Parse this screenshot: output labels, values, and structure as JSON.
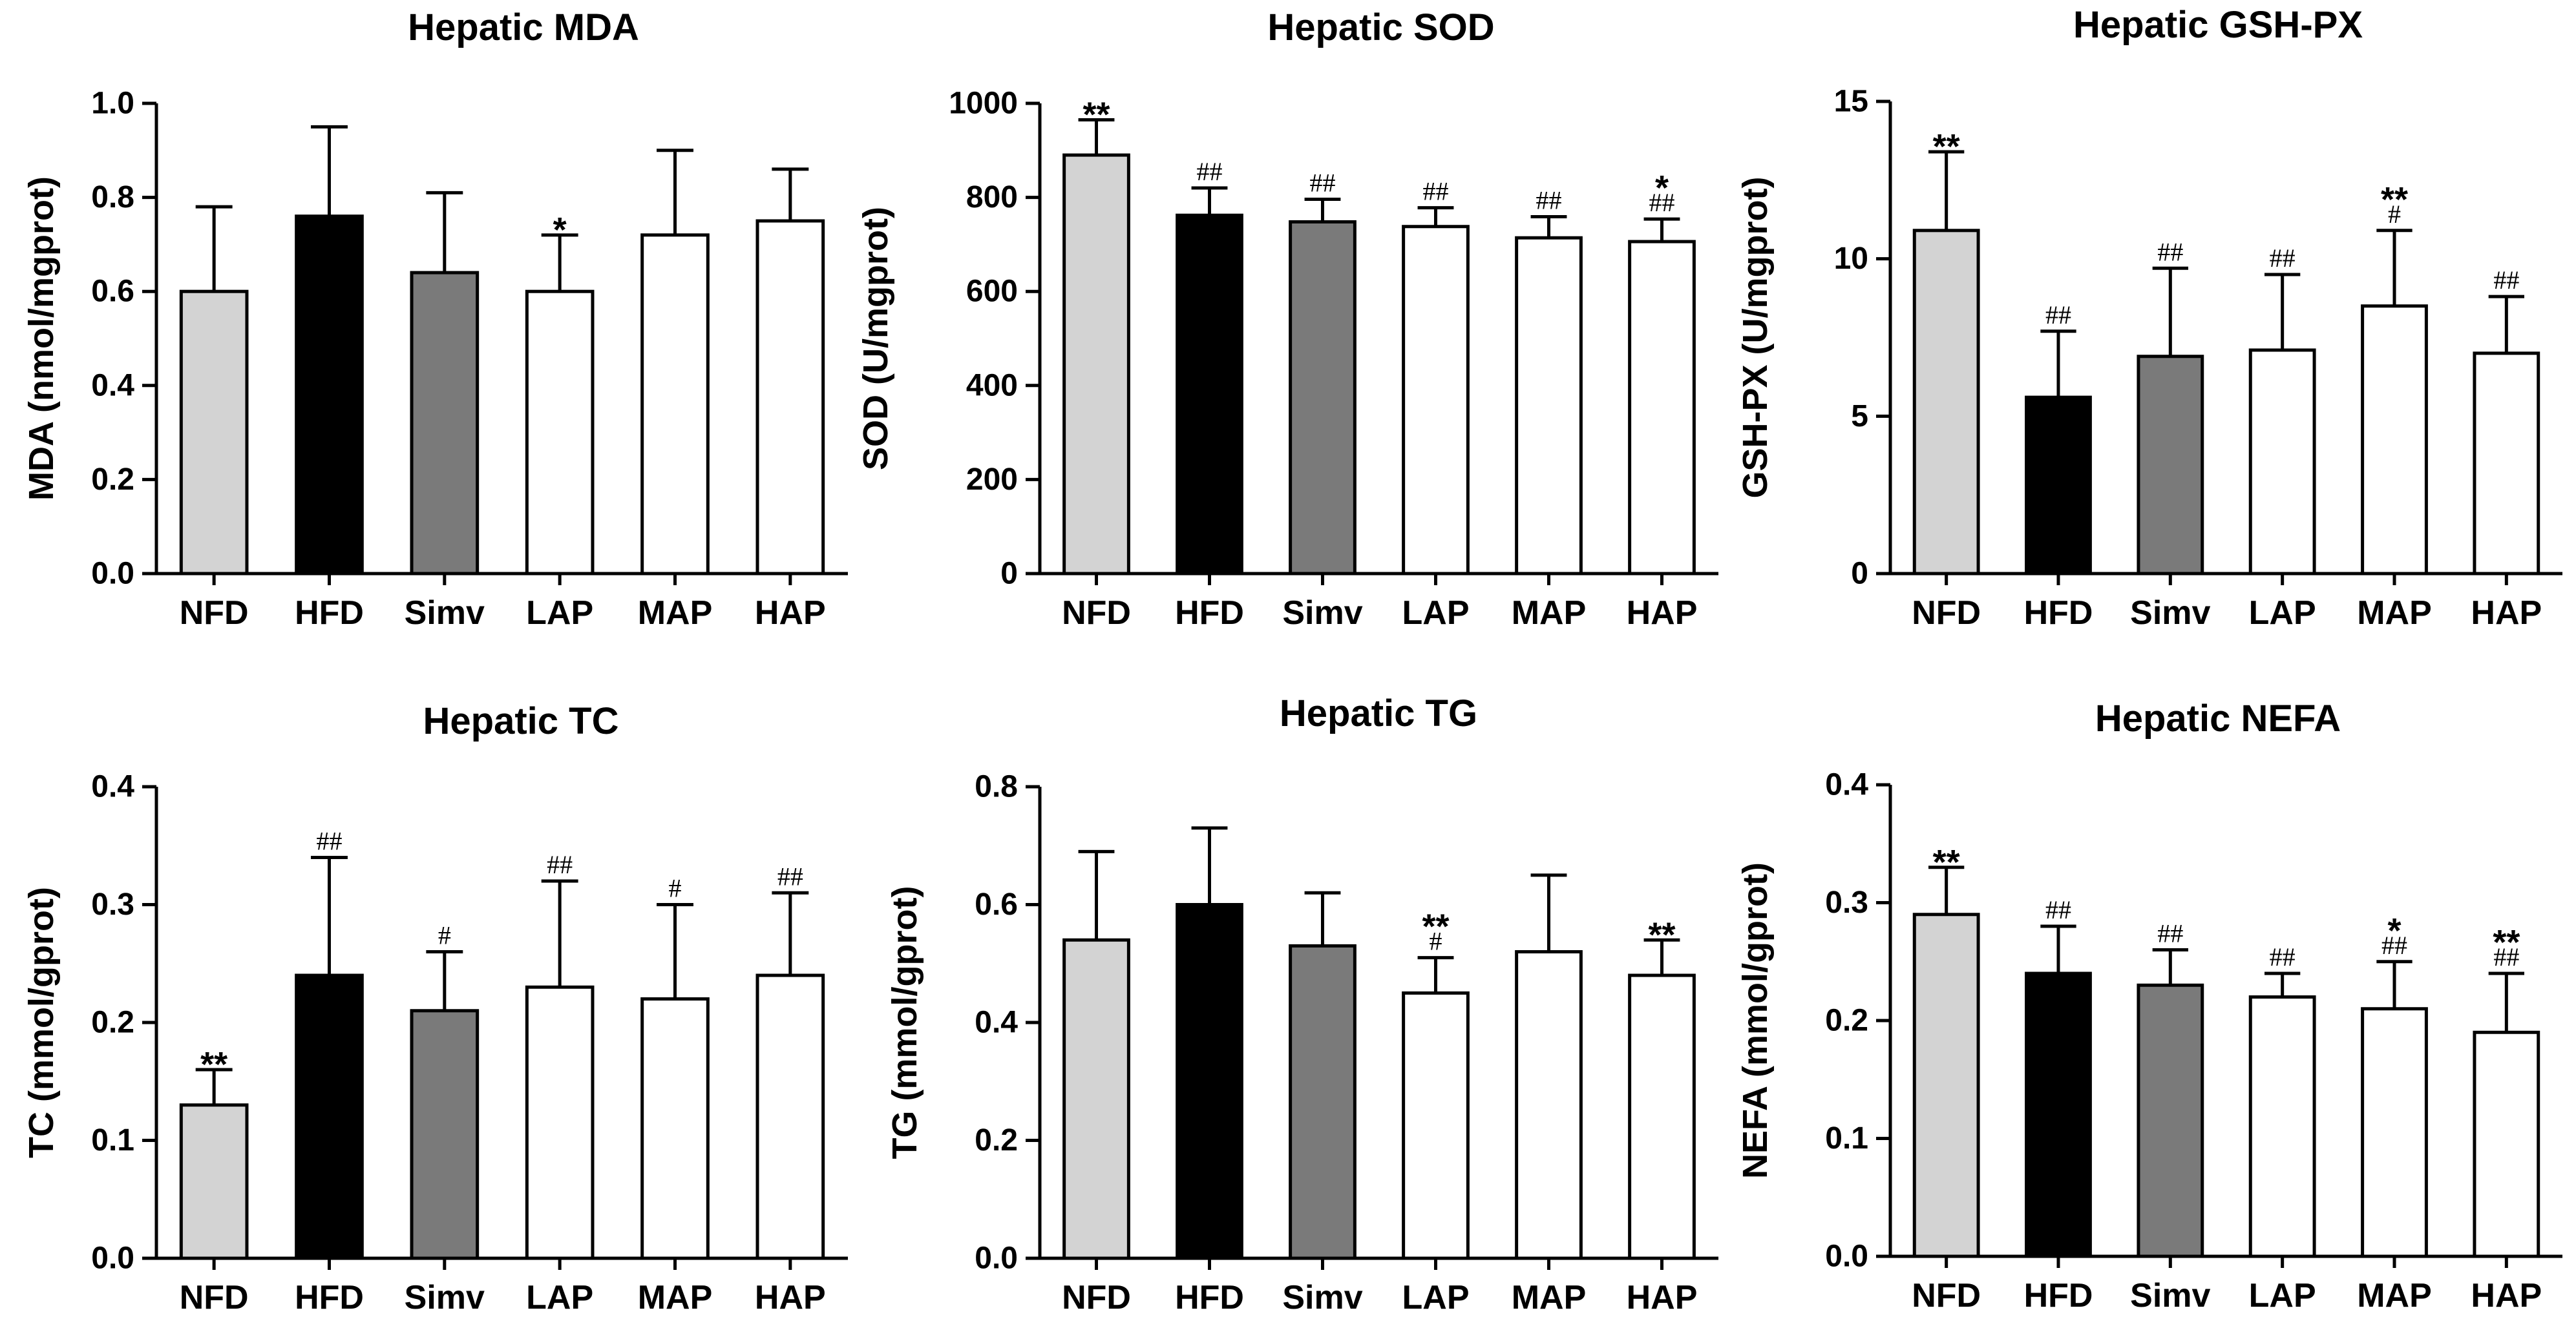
{
  "colors": {
    "NFD": "#d3d3d3",
    "HFD": "#000000",
    "Simv": "#7a7a7a",
    "LAP": "#ffffff",
    "MAP": "#ffffff",
    "HAP": "#ffffff",
    "stroke": "#000000"
  },
  "chart_data": [
    {
      "type": "bar",
      "title": "Hepatic MDA",
      "ylabel": "MDA (nmol/mgprot)",
      "xlabel": "",
      "categories": [
        "NFD",
        "HFD",
        "Simv",
        "LAP",
        "MAP",
        "HAP"
      ],
      "values": [
        0.6,
        0.76,
        0.64,
        0.6,
        0.72,
        0.75
      ],
      "errors": [
        0.18,
        0.19,
        0.17,
        0.12,
        0.18,
        0.11
      ],
      "ylim": [
        0,
        1.0
      ],
      "yticks": [
        "0.0",
        "0.2",
        "0.4",
        "0.6",
        "0.8",
        "1.0"
      ],
      "annotations": [
        {
          "category": "LAP",
          "labels": [
            "*"
          ]
        }
      ]
    },
    {
      "type": "bar",
      "title": "Hepatic SOD",
      "ylabel": "SOD (U/mgprot)",
      "xlabel": "",
      "categories": [
        "NFD",
        "HFD",
        "Simv",
        "LAP",
        "MAP",
        "HAP"
      ],
      "values": [
        890,
        762,
        748,
        738,
        714,
        706
      ],
      "errors": [
        75,
        58,
        48,
        40,
        45,
        48
      ],
      "ylim": [
        0,
        1000
      ],
      "yticks": [
        "0",
        "200",
        "400",
        "600",
        "800",
        "1000"
      ],
      "annotations": [
        {
          "category": "NFD",
          "labels": [
            "**"
          ]
        },
        {
          "category": "HFD",
          "labels": [
            "##"
          ]
        },
        {
          "category": "Simv",
          "labels": [
            "##"
          ]
        },
        {
          "category": "LAP",
          "labels": [
            "##"
          ]
        },
        {
          "category": "MAP",
          "labels": [
            "##"
          ]
        },
        {
          "category": "HAP",
          "labels": [
            "*",
            "##"
          ]
        }
      ]
    },
    {
      "type": "bar",
      "title": "Hepatic GSH-PX",
      "ylabel": "GSH-PX (U/mgprot)",
      "xlabel": "",
      "categories": [
        "NFD",
        "HFD",
        "Simv",
        "LAP",
        "MAP",
        "HAP"
      ],
      "values": [
        10.9,
        5.6,
        6.9,
        7.1,
        8.5,
        7.0
      ],
      "errors": [
        2.5,
        2.1,
        2.8,
        2.4,
        2.4,
        1.8
      ],
      "ylim": [
        0,
        15
      ],
      "yticks": [
        "0",
        "5",
        "10",
        "15"
      ],
      "annotations": [
        {
          "category": "NFD",
          "labels": [
            "**"
          ]
        },
        {
          "category": "HFD",
          "labels": [
            "##"
          ]
        },
        {
          "category": "Simv",
          "labels": [
            "##"
          ]
        },
        {
          "category": "LAP",
          "labels": [
            "##"
          ]
        },
        {
          "category": "MAP",
          "labels": [
            "**",
            "#"
          ]
        },
        {
          "category": "HAP",
          "labels": [
            "##"
          ]
        }
      ]
    },
    {
      "type": "bar",
      "title": "Hepatic TC",
      "ylabel": "TC (mmol/gprot)",
      "xlabel": "",
      "categories": [
        "NFD",
        "HFD",
        "Simv",
        "LAP",
        "MAP",
        "HAP"
      ],
      "values": [
        0.13,
        0.24,
        0.21,
        0.23,
        0.22,
        0.24
      ],
      "errors": [
        0.03,
        0.1,
        0.05,
        0.09,
        0.08,
        0.07
      ],
      "ylim": [
        0,
        0.4
      ],
      "yticks": [
        "0.0",
        "0.1",
        "0.2",
        "0.3",
        "0.4"
      ],
      "annotations": [
        {
          "category": "NFD",
          "labels": [
            "**"
          ]
        },
        {
          "category": "HFD",
          "labels": [
            "##"
          ]
        },
        {
          "category": "Simv",
          "labels": [
            "#"
          ]
        },
        {
          "category": "LAP",
          "labels": [
            "##"
          ]
        },
        {
          "category": "MAP",
          "labels": [
            "#"
          ]
        },
        {
          "category": "HAP",
          "labels": [
            "##"
          ]
        }
      ]
    },
    {
      "type": "bar",
      "title": "Hepatic TG",
      "ylabel": "TG (mmol/gprot)",
      "xlabel": "",
      "categories": [
        "NFD",
        "HFD",
        "Simv",
        "LAP",
        "MAP",
        "HAP"
      ],
      "values": [
        0.54,
        0.6,
        0.53,
        0.45,
        0.52,
        0.48
      ],
      "errors": [
        0.15,
        0.13,
        0.09,
        0.06,
        0.13,
        0.06
      ],
      "ylim": [
        0,
        0.8
      ],
      "yticks": [
        "0.0",
        "0.2",
        "0.4",
        "0.6",
        "0.8"
      ],
      "annotations": [
        {
          "category": "LAP",
          "labels": [
            "**",
            "#"
          ]
        },
        {
          "category": "HAP",
          "labels": [
            "**"
          ]
        }
      ]
    },
    {
      "type": "bar",
      "title": "Hepatic NEFA",
      "ylabel": "NEFA (mmol/gprot)",
      "xlabel": "",
      "categories": [
        "NFD",
        "HFD",
        "Simv",
        "LAP",
        "MAP",
        "HAP"
      ],
      "values": [
        0.29,
        0.24,
        0.23,
        0.22,
        0.21,
        0.19
      ],
      "errors": [
        0.04,
        0.04,
        0.03,
        0.02,
        0.04,
        0.05
      ],
      "ylim": [
        0,
        0.4
      ],
      "yticks": [
        "0.0",
        "0.1",
        "0.2",
        "0.3",
        "0.4"
      ],
      "annotations": [
        {
          "category": "NFD",
          "labels": [
            "**"
          ]
        },
        {
          "category": "HFD",
          "labels": [
            "##"
          ]
        },
        {
          "category": "Simv",
          "labels": [
            "##"
          ]
        },
        {
          "category": "LAP",
          "labels": [
            "##"
          ]
        },
        {
          "category": "MAP",
          "labels": [
            "*",
            "##"
          ]
        },
        {
          "category": "HAP",
          "labels": [
            "**",
            "##"
          ]
        }
      ]
    }
  ]
}
